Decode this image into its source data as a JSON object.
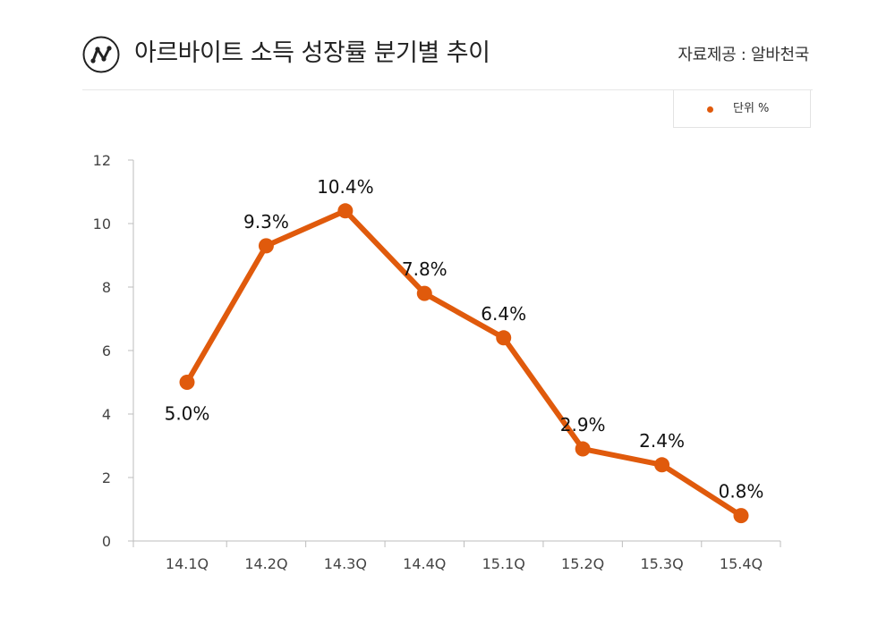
{
  "header": {
    "title": "아르바이트 소득 성장률 분기별 추이",
    "source": "자료제공 : 알바천국",
    "logo_icon": "line-chart-icon"
  },
  "legend": {
    "label": "단위 %",
    "color": "#e05a0c"
  },
  "chart_data": {
    "type": "line",
    "title": "아르바이트 소득 성장률 분기별 추이",
    "xlabel": "",
    "ylabel": "",
    "categories": [
      "14.1Q",
      "14.2Q",
      "14.3Q",
      "14.4Q",
      "15.1Q",
      "15.2Q",
      "15.3Q",
      "15.4Q"
    ],
    "series": [
      {
        "name": "단위 %",
        "values": [
          5.0,
          9.3,
          10.4,
          7.8,
          6.4,
          2.9,
          2.4,
          0.8
        ],
        "labels": [
          "5.0%",
          "9.3%",
          "10.4%",
          "7.8%",
          "6.4%",
          "2.9%",
          "2.4%",
          "0.8%"
        ],
        "color": "#e05a0c"
      }
    ],
    "ylim": [
      0,
      12
    ],
    "yticks": [
      0,
      2,
      4,
      6,
      8,
      10,
      12
    ],
    "grid": false,
    "legend_position": "top-right"
  }
}
